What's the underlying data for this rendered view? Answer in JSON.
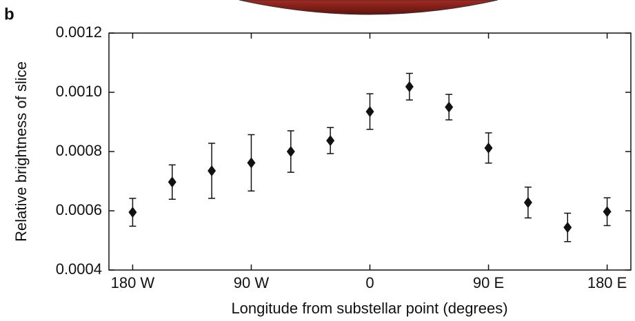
{
  "chart_data": {
    "type": "scatter",
    "panel_label": "b",
    "xlabel": "Longitude from substellar point (degrees)",
    "ylabel": "Relative brightness of slice",
    "x": [
      -180,
      -150,
      -120,
      -90,
      -60,
      -30,
      0,
      30,
      60,
      90,
      120,
      150,
      180
    ],
    "values": [
      0.000595,
      0.000697,
      0.000735,
      0.000762,
      0.0008,
      0.000837,
      0.000935,
      0.001019,
      0.00095,
      0.000812,
      0.000628,
      0.000544,
      0.000597
    ],
    "errors": [
      4.7e-05,
      5.8e-05,
      9.3e-05,
      9.5e-05,
      7e-05,
      4.4e-05,
      6e-05,
      4.5e-05,
      4.3e-05,
      5.1e-05,
      5.2e-05,
      4.8e-05,
      4.7e-05
    ],
    "color": "#111111",
    "xlim": [
      -198,
      198
    ],
    "xticks": [
      {
        "value": -180,
        "label": "180 W"
      },
      {
        "value": -90,
        "label": "90 W"
      },
      0,
      {
        "value": 90,
        "label": "90 E"
      },
      {
        "value": 180,
        "label": "180 E"
      }
    ],
    "ylim": [
      0.0004,
      0.0012
    ],
    "yticks": [
      0.0004,
      0.0006,
      0.0008,
      {
        "value": 0.001,
        "label": "0.0010"
      },
      0.0012
    ]
  }
}
